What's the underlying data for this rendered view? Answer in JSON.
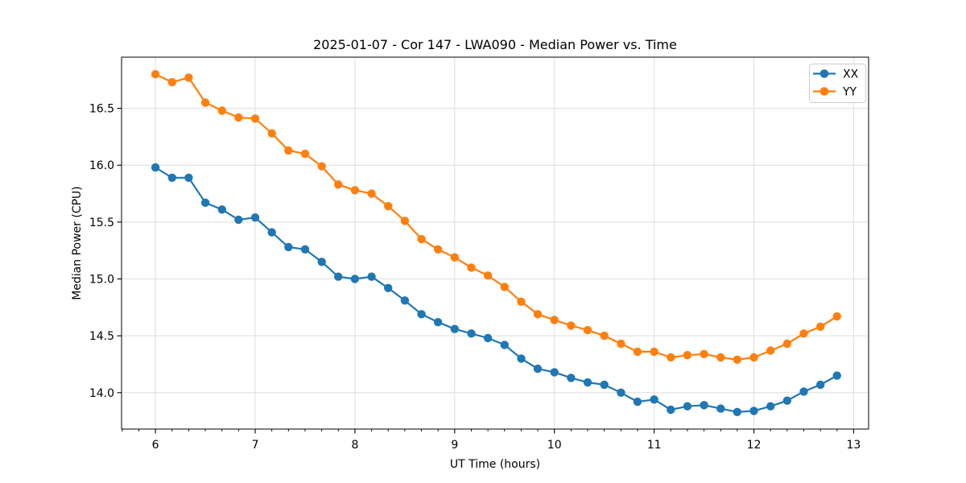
{
  "chart_data": {
    "type": "line",
    "title": "2025-01-07 - Cor 147 - LWA090 - Median Power vs. Time",
    "xlabel": "UT Time (hours)",
    "ylabel": "Median Power (CPU)",
    "xlim": [
      5.66,
      13.15
    ],
    "ylim": [
      13.68,
      16.95
    ],
    "x_ticks": [
      6,
      7,
      8,
      9,
      10,
      11,
      12,
      13
    ],
    "y_ticks": [
      14.0,
      14.5,
      15.0,
      15.5,
      16.0,
      16.5
    ],
    "x_minor_tick_step": 0.1667,
    "grid": true,
    "grid_color": "#dedede",
    "background": "#ffffff",
    "legend": {
      "position": "upper right",
      "entries": [
        "XX",
        "YY"
      ]
    },
    "x": [
      6.0,
      6.167,
      6.333,
      6.5,
      6.667,
      6.833,
      7.0,
      7.167,
      7.333,
      7.5,
      7.667,
      7.833,
      8.0,
      8.167,
      8.333,
      8.5,
      8.667,
      8.833,
      9.0,
      9.167,
      9.333,
      9.5,
      9.667,
      9.833,
      10.0,
      10.167,
      10.333,
      10.5,
      10.667,
      10.833,
      11.0,
      11.167,
      11.333,
      11.5,
      11.667,
      11.833,
      12.0,
      12.167,
      12.333,
      12.5,
      12.667,
      12.833
    ],
    "series": [
      {
        "name": "XX",
        "color": "#1f77b4",
        "values": [
          15.98,
          15.89,
          15.89,
          15.67,
          15.61,
          15.52,
          15.54,
          15.41,
          15.28,
          15.26,
          15.15,
          15.02,
          15.0,
          15.02,
          14.92,
          14.81,
          14.69,
          14.62,
          14.56,
          14.52,
          14.48,
          14.42,
          14.3,
          14.21,
          14.18,
          14.13,
          14.09,
          14.07,
          14.0,
          13.92,
          13.94,
          13.85,
          13.88,
          13.89,
          13.86,
          13.83,
          13.84,
          13.88,
          13.93,
          14.01,
          14.07,
          14.15
        ]
      },
      {
        "name": "YY",
        "color": "#ff7f0e",
        "values": [
          16.8,
          16.73,
          16.77,
          16.55,
          16.48,
          16.42,
          16.41,
          16.28,
          16.13,
          16.1,
          15.99,
          15.83,
          15.78,
          15.75,
          15.64,
          15.51,
          15.35,
          15.26,
          15.19,
          15.1,
          15.03,
          14.93,
          14.8,
          14.69,
          14.64,
          14.59,
          14.55,
          14.5,
          14.43,
          14.36,
          14.36,
          14.31,
          14.33,
          14.34,
          14.31,
          14.29,
          14.31,
          14.37,
          14.43,
          14.52,
          14.58,
          14.67
        ]
      }
    ]
  }
}
